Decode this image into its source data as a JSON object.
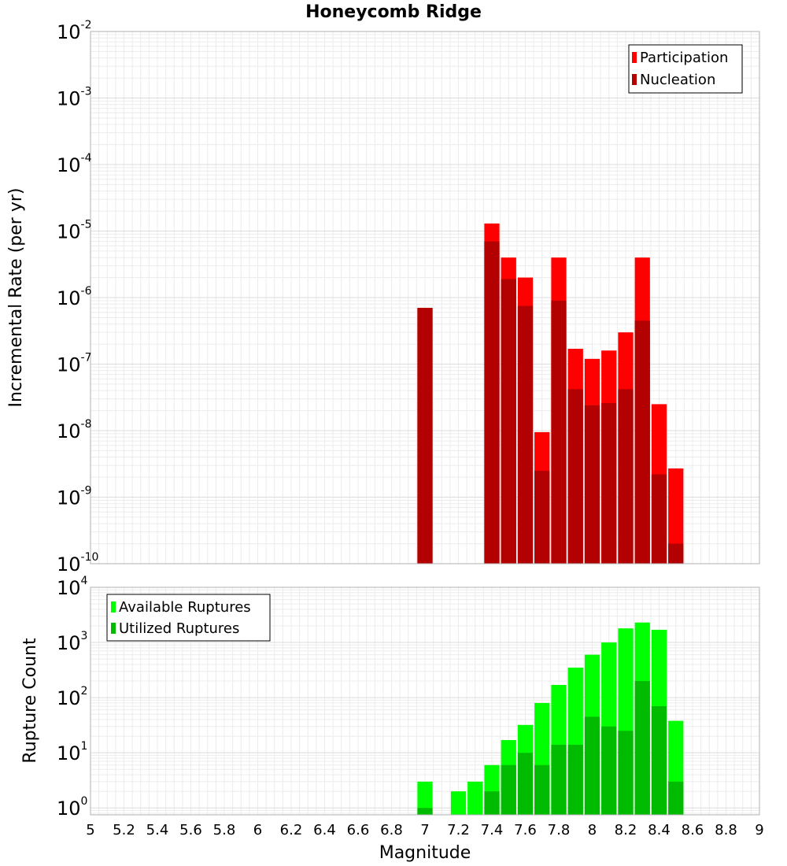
{
  "chart_data": [
    {
      "type": "bar",
      "title": "Honeycomb Ridge",
      "xlabel": "Magnitude",
      "ylabel": "Incremental Rate (per yr)",
      "yscale": "log",
      "ylim": [
        1e-10,
        0.01
      ],
      "xlim": [
        5,
        9
      ],
      "grid": true,
      "legend_position": "top-right",
      "bin_width": 0.1,
      "x": [
        7.0,
        7.4,
        7.5,
        7.6,
        7.7,
        7.8,
        7.9,
        8.0,
        8.1,
        8.2,
        8.3,
        8.4,
        8.5
      ],
      "series": [
        {
          "name": "Participation",
          "color": "#ff0000",
          "values": [
            7e-07,
            1.3e-05,
            4e-06,
            2e-06,
            9.5e-09,
            4e-06,
            1.7e-07,
            1.2e-07,
            1.6e-07,
            3e-07,
            4e-06,
            2.5e-08,
            2.7e-09
          ]
        },
        {
          "name": "Nucleation",
          "color": "#b30000",
          "values": [
            7e-07,
            7e-06,
            1.9e-06,
            7.5e-07,
            2.5e-09,
            9e-07,
            4.2e-08,
            2.4e-08,
            2.6e-08,
            4.2e-08,
            4.5e-07,
            2.2e-09,
            2e-10
          ]
        }
      ]
    },
    {
      "type": "bar",
      "xlabel": "Magnitude",
      "ylabel": "Rupture Count",
      "yscale": "log",
      "ylim": [
        0.75,
        10000
      ],
      "xlim": [
        5,
        9
      ],
      "grid": true,
      "legend_position": "top-left",
      "bin_width": 0.1,
      "x": [
        7.0,
        7.2,
        7.3,
        7.4,
        7.5,
        7.6,
        7.7,
        7.8,
        7.9,
        8.0,
        8.1,
        8.2,
        8.3,
        8.4,
        8.5
      ],
      "series": [
        {
          "name": "Available Ruptures",
          "color": "#00ff00",
          "values": [
            3,
            2,
            3,
            6,
            17,
            32,
            80,
            170,
            350,
            600,
            1000,
            1800,
            2300,
            1700,
            38
          ]
        },
        {
          "name": "Utilized Ruptures",
          "color": "#00bb00",
          "values": [
            1,
            0,
            0,
            2,
            6,
            10,
            6,
            14,
            14,
            45,
            30,
            25,
            200,
            70,
            3
          ]
        }
      ]
    }
  ],
  "x_ticks": [
    "5",
    "5.2",
    "5.4",
    "5.6",
    "5.8",
    "6",
    "6.2",
    "6.4",
    "6.6",
    "6.8",
    "7",
    "7.2",
    "7.4",
    "7.6",
    "7.8",
    "8",
    "8.2",
    "8.4",
    "8.6",
    "8.8",
    "9"
  ],
  "top_y_ticks": [
    {
      "base": "10",
      "exp": "-2",
      "value": 0.01
    },
    {
      "base": "10",
      "exp": "-3",
      "value": 0.001
    },
    {
      "base": "10",
      "exp": "-4",
      "value": 0.0001
    },
    {
      "base": "10",
      "exp": "-5",
      "value": 1e-05
    },
    {
      "base": "10",
      "exp": "-6",
      "value": 1e-06
    },
    {
      "base": "10",
      "exp": "-7",
      "value": 1e-07
    },
    {
      "base": "10",
      "exp": "-8",
      "value": 1e-08
    },
    {
      "base": "10",
      "exp": "-9",
      "value": 1e-09
    },
    {
      "base": "10",
      "exp": "-10",
      "value": 1e-10
    }
  ],
  "bottom_y_ticks": [
    {
      "base": "10",
      "exp": "4",
      "value": 10000
    },
    {
      "base": "10",
      "exp": "3",
      "value": 1000
    },
    {
      "base": "10",
      "exp": "2",
      "value": 100
    },
    {
      "base": "10",
      "exp": "1",
      "value": 10
    },
    {
      "base": "10",
      "exp": "0",
      "value": 1
    }
  ]
}
